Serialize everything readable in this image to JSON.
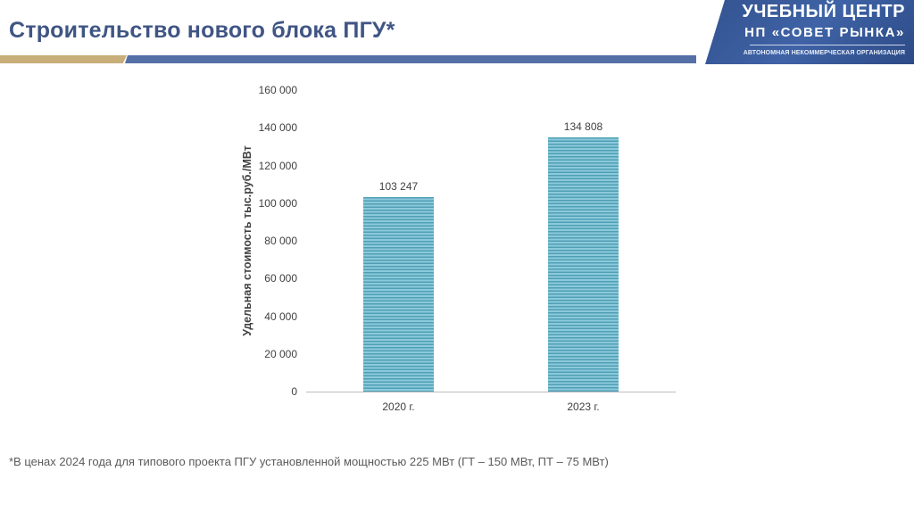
{
  "slide": {
    "title": "Строительство нового блока ПГУ*",
    "footnote": "*В ценах 2024 года для типового проекта ПГУ установленной мощностью 225 МВт (ГТ – 150 МВт, ПТ – 75 МВт)"
  },
  "logo": {
    "line1": "УЧЕБНЫЙ ЦЕНТР",
    "line2": "НП «СОВЕТ РЫНКА»",
    "line3": "АВТОНОМНАЯ НЕКОММЕРЧЕСКАЯ ОРГАНИЗАЦИЯ"
  },
  "colors": {
    "title": "#3f5584",
    "rule_gold": "#c8ae78",
    "rule_blue": "#5570a6",
    "bar_dark": "#4f9fb5",
    "bar_light": "#8ccadb"
  },
  "chart_data": {
    "type": "bar",
    "title": "",
    "categories": [
      "2020 г.",
      "2023 г."
    ],
    "values": [
      103247,
      134808
    ],
    "value_labels": [
      "103 247",
      "134 808"
    ],
    "xlabel": "",
    "ylabel": "Удельная стоимость тыс.руб./МВт",
    "ylim": [
      0,
      160000
    ],
    "yticks": [
      "0",
      "20 000",
      "40 000",
      "60 000",
      "80 000",
      "100 000",
      "120 000",
      "140 000",
      "160 000"
    ],
    "grid": false,
    "legend": null
  }
}
